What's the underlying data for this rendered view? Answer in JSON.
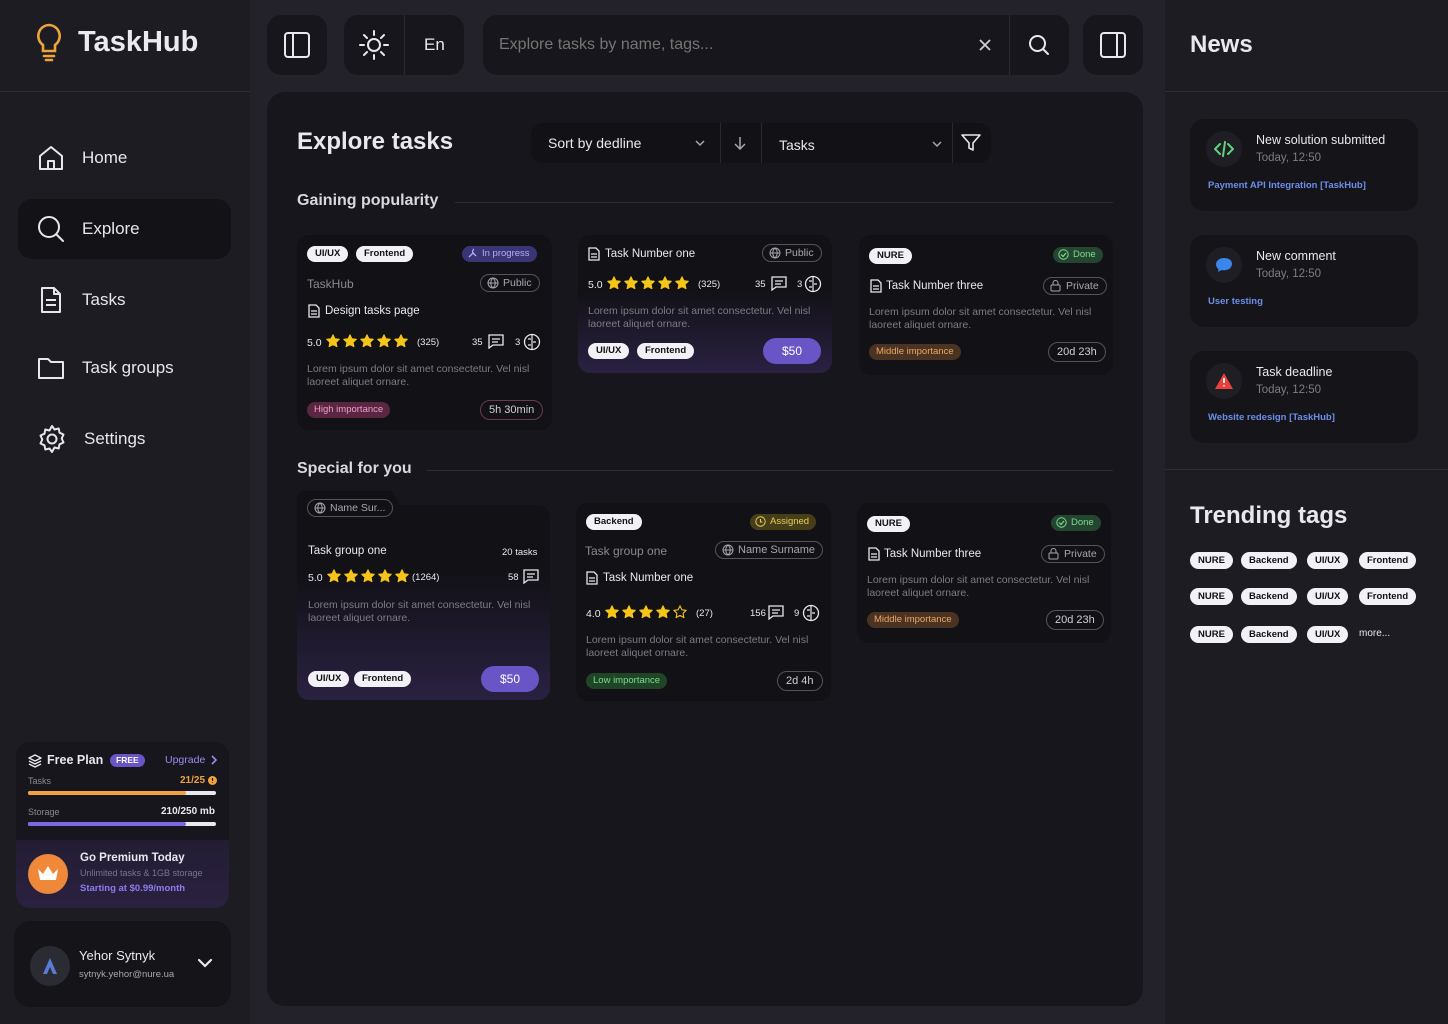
{
  "app": {
    "name": "TaskHub"
  },
  "nav": [
    {
      "label": "Home"
    },
    {
      "label": "Explore"
    },
    {
      "label": "Tasks"
    },
    {
      "label": "Task groups"
    },
    {
      "label": "Settings"
    }
  ],
  "plan": {
    "name": "Free Plan",
    "badge": "FREE",
    "upgrade": "Upgrade",
    "tasks_label": "Tasks",
    "tasks_value": "21/25",
    "tasks_fraction": 0.84,
    "storage_label": "Storage",
    "storage_value": "210/250 mb",
    "storage_fraction": 0.84,
    "premium_title": "Go Premium Today",
    "premium_sub": "Unlimited tasks & 1GB storage",
    "premium_price": "Starting at $0.99/month"
  },
  "user": {
    "name": "Yehor Sytnyk",
    "email": "sytnyk.yehor@nure.ua"
  },
  "topbar": {
    "lang": "En",
    "search_placeholder": "Explore tasks by name, tags..."
  },
  "main": {
    "title": "Explore tasks",
    "sort_label": "Sort by dedline",
    "type_label": "Tasks",
    "section1": "Gaining popularity",
    "section2": "Special for you"
  },
  "cards": {
    "c1": {
      "tags": [
        "UI/UX",
        "Frontend"
      ],
      "status": "In progress",
      "org": "TaskHub",
      "visibility": "Public",
      "title": "Design tasks page",
      "rating": "5.0",
      "reviews": "(325)",
      "comments": "35",
      "solutions": "3",
      "desc": "Lorem ipsum dolor sit amet consectetur. Vel nisl laoreet aliquet ornare.",
      "importance": "High importance",
      "time": "5h 30min"
    },
    "c2": {
      "title": "Task Number one",
      "visibility": "Public",
      "rating": "5.0",
      "reviews": "(325)",
      "comments": "35",
      "solutions": "3",
      "desc": "Lorem ipsum dolor sit amet consectetur. Vel nisl laoreet aliquet ornare.",
      "tags": [
        "UI/UX",
        "Frontend"
      ],
      "price": "$50"
    },
    "c3": {
      "tag": "NURE",
      "status": "Done",
      "title": "Task Number three",
      "visibility": "Private",
      "desc": "Lorem ipsum dolor sit amet consectetur. Vel nisl laoreet aliquet ornare.",
      "importance": "Middle importance",
      "time": "20d 23h"
    },
    "c4": {
      "owner": "Name Sur...",
      "title": "Task group one",
      "count": "20 tasks",
      "rating": "5.0",
      "reviews": "(1264)",
      "comments": "58",
      "desc": "Lorem ipsum dolor sit amet consectetur. Vel nisl laoreet aliquet ornare.",
      "tags": [
        "UI/UX",
        "Frontend"
      ],
      "price": "$50"
    },
    "c5": {
      "tag": "Backend",
      "status": "Assigned",
      "group": "Task group one",
      "owner": "Name Surname",
      "title": "Task Number one",
      "rating": "4.0",
      "reviews": "(27)",
      "comments": "156",
      "solutions": "9",
      "desc": "Lorem ipsum dolor sit amet consectetur. Vel nisl laoreet aliquet ornare.",
      "importance": "Low importance",
      "time": "2d 4h"
    },
    "c6": {
      "tag": "NURE",
      "status": "Done",
      "title": "Task Number three",
      "visibility": "Private",
      "desc": "Lorem ipsum dolor sit amet consectetur. Vel nisl laoreet aliquet ornare.",
      "importance": "Middle importance",
      "time": "20d 23h"
    }
  },
  "news": {
    "title": "News",
    "items": [
      {
        "title": "New solution submitted",
        "time": "Today, 12:50",
        "link": "Payment API Integration",
        "bracket": "TaskHub",
        "icon": "code-icon"
      },
      {
        "title": "New comment",
        "time": "Today, 12:50",
        "link": "User testing",
        "bracket": "",
        "icon": "comment-icon"
      },
      {
        "title": "Task deadline",
        "time": "Today, 12:50",
        "link": "Website redesign",
        "bracket": "TaskHub",
        "icon": "warning-icon"
      }
    ]
  },
  "trending": {
    "title": "Trending tags",
    "tags": [
      "NURE",
      "Backend",
      "UI/UX",
      "Frontend",
      "NURE",
      "Backend",
      "UI/UX",
      "Frontend",
      "NURE",
      "Backend",
      "UI/UX"
    ],
    "more": "more..."
  },
  "colors": {
    "accent": "#6a55c6",
    "orange": "#f0a33a",
    "bg": "#17161c"
  }
}
